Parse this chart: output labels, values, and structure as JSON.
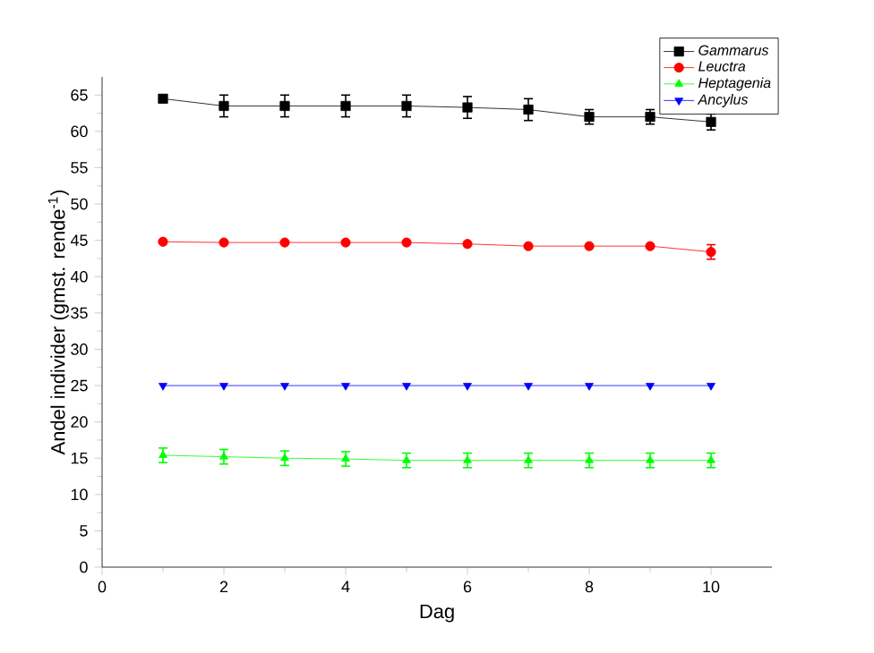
{
  "chart_data": {
    "type": "line",
    "xlabel": "Dag",
    "ylabel": "Andel individer (gmst. rende$^{-1}$)",
    "x": [
      1,
      2,
      3,
      4,
      5,
      6,
      7,
      8,
      9,
      10
    ],
    "series": [
      {
        "name": "*Gammarus*",
        "color": "#000000",
        "marker": "square",
        "values": [
          64.5,
          63.5,
          63.5,
          63.5,
          63.5,
          63.3,
          63.0,
          62.0,
          62.0,
          61.3
        ],
        "errors": [
          null,
          1.5,
          1.5,
          1.5,
          1.5,
          1.5,
          1.5,
          1.0,
          1.0,
          1.1
        ]
      },
      {
        "name": "*Leuctra*",
        "color": "#ff0000",
        "marker": "circle",
        "values": [
          44.8,
          44.7,
          44.7,
          44.7,
          44.7,
          44.5,
          44.2,
          44.2,
          44.2,
          43.4
        ],
        "errors": [
          null,
          null,
          null,
          null,
          null,
          null,
          null,
          null,
          null,
          1.0
        ]
      },
      {
        "name": "*Heptagenia*",
        "color": "#00ff00",
        "marker": "triangle",
        "values": [
          15.4,
          15.2,
          15.0,
          14.9,
          14.7,
          14.7,
          14.7,
          14.7,
          14.7,
          14.7
        ],
        "errors": [
          1.0,
          1.0,
          1.0,
          1.0,
          1.0,
          1.0,
          1.0,
          1.0,
          1.0,
          1.0
        ]
      },
      {
        "name": "*Ancylus*",
        "color": "#0000ff",
        "marker": "triangle down",
        "values": [
          25,
          25,
          25,
          25,
          25,
          25,
          25,
          25,
          25,
          25
        ]
      }
    ],
    "xlim": [
      0,
      11
    ],
    "xticks": [
      0,
      2,
      4,
      6,
      8,
      10
    ],
    "ylim": [
      0,
      67.5
    ],
    "yticks": [
      0,
      5,
      10,
      15,
      20,
      25,
      30,
      35,
      40,
      45,
      50,
      55,
      60,
      65
    ],
    "grid": false,
    "legend": "top right",
    "line_style": "solid"
  }
}
